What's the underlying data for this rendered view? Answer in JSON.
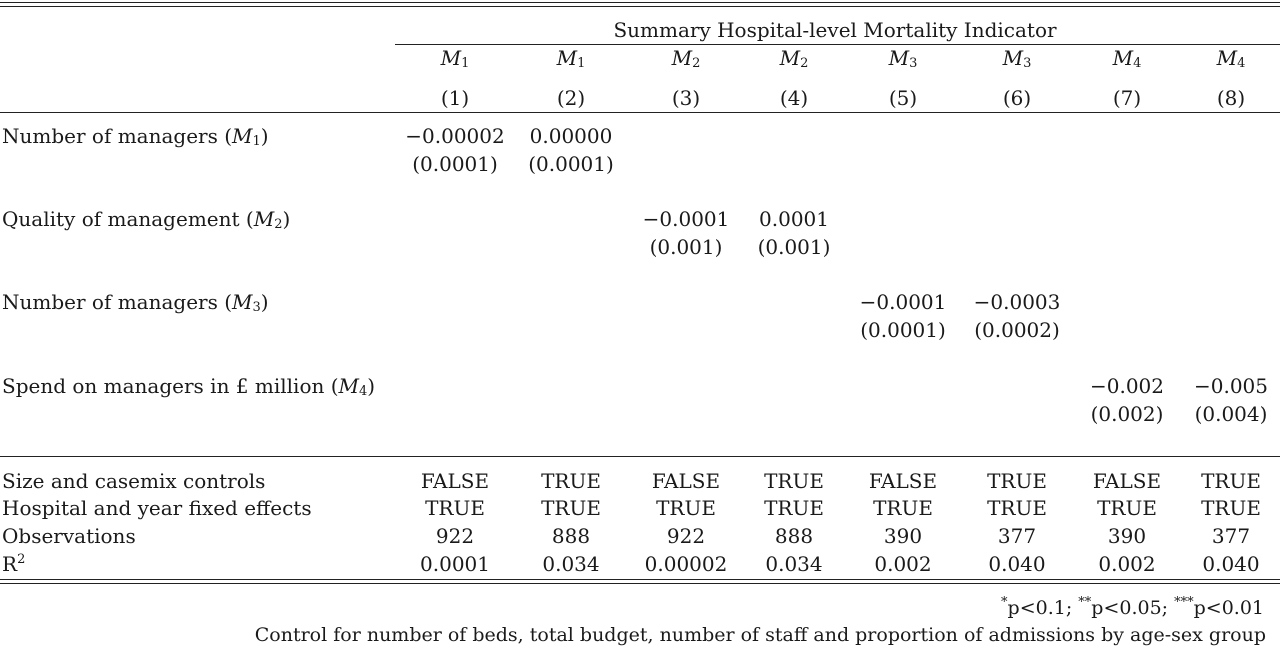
{
  "table": {
    "header_span": "Summary Hospital-level Mortality Indicator",
    "models": [
      {
        "var": "M",
        "sub": "1",
        "num": "(1)"
      },
      {
        "var": "M",
        "sub": "1",
        "num": "(2)"
      },
      {
        "var": "M",
        "sub": "2",
        "num": "(3)"
      },
      {
        "var": "M",
        "sub": "2",
        "num": "(4)"
      },
      {
        "var": "M",
        "sub": "3",
        "num": "(5)"
      },
      {
        "var": "M",
        "sub": "3",
        "num": "(6)"
      },
      {
        "var": "M",
        "sub": "4",
        "num": "(7)"
      },
      {
        "var": "M",
        "sub": "4",
        "num": "(8)"
      }
    ],
    "coef_rows": [
      {
        "label": "Number of managers (",
        "label_var": "M",
        "label_sub": "1",
        "label_close": ")",
        "cols": [
          0,
          1
        ],
        "estimates": [
          "−0.00002",
          "0.00000"
        ],
        "se": [
          "(0.0001)",
          "(0.0001)"
        ]
      },
      {
        "label": "Quality of management (",
        "label_var": "M",
        "label_sub": "2",
        "label_close": ")",
        "cols": [
          2,
          3
        ],
        "estimates": [
          "−0.0001",
          "0.0001"
        ],
        "se": [
          "(0.001)",
          "(0.001)"
        ]
      },
      {
        "label": "Number of managers (",
        "label_var": "M",
        "label_sub": "3",
        "label_close": ")",
        "cols": [
          4,
          5
        ],
        "estimates": [
          "−0.0001",
          "−0.0003"
        ],
        "se": [
          "(0.0001)",
          "(0.0002)"
        ]
      },
      {
        "label": "Spend on managers in £ million (",
        "label_var": "M",
        "label_sub": "4",
        "label_close": ")",
        "cols": [
          6,
          7
        ],
        "estimates": [
          "−0.002",
          "−0.005"
        ],
        "se": [
          "(0.002)",
          "(0.004)"
        ]
      }
    ],
    "stat_rows": [
      {
        "label": "Size and casemix controls",
        "values": [
          "FALSE",
          "TRUE",
          "FALSE",
          "TRUE",
          "FALSE",
          "TRUE",
          "FALSE",
          "TRUE"
        ]
      },
      {
        "label": "Hospital and year fixed effects",
        "values": [
          "TRUE",
          "TRUE",
          "TRUE",
          "TRUE",
          "TRUE",
          "TRUE",
          "TRUE",
          "TRUE"
        ]
      },
      {
        "label": "Observations",
        "values": [
          "922",
          "888",
          "922",
          "888",
          "390",
          "377",
          "390",
          "377"
        ]
      },
      {
        "label": "R",
        "label_sup": "2",
        "values": [
          "0.0001",
          "0.034",
          "0.00002",
          "0.034",
          "0.002",
          "0.040",
          "0.002",
          "0.040"
        ]
      }
    ],
    "footnotes": {
      "sig_1_star": "*",
      "sig_1_text": "p<0.1; ",
      "sig_2_star": "**",
      "sig_2_text": "p<0.05; ",
      "sig_3_star": "***",
      "sig_3_text": "p<0.01",
      "controls_note": "Control for number of beds, total budget, number of staff and proportion of admissions by age-sex group"
    }
  }
}
